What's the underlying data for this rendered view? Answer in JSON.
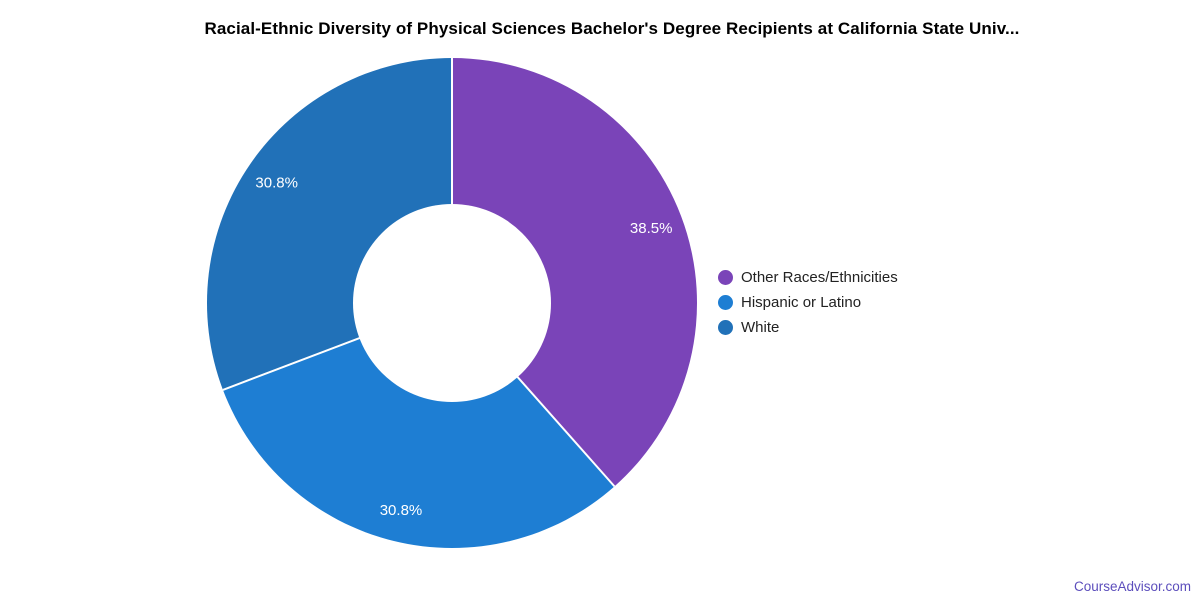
{
  "chart_data": {
    "type": "pie",
    "donut": true,
    "title": "Racial-Ethnic Diversity of Physical Sciences Bachelor's Degree Recipients at California State Univ...",
    "categories": [
      "Other Races/Ethnicities",
      "Hispanic or Latino",
      "White"
    ],
    "values": [
      38.5,
      30.8,
      30.8
    ],
    "value_labels": [
      "38.5%",
      "30.8%",
      "30.8%"
    ],
    "colors": [
      "#7a44b8",
      "#1e7ed3",
      "#2171b8"
    ],
    "slice_label_color": "#ffffff",
    "separator_color": "#ffffff",
    "start_angle": "top",
    "direction": "clockwise",
    "legend_position": "right"
  },
  "footer": {
    "text": "CourseAdvisor.com",
    "color": "#5c4ebc"
  }
}
